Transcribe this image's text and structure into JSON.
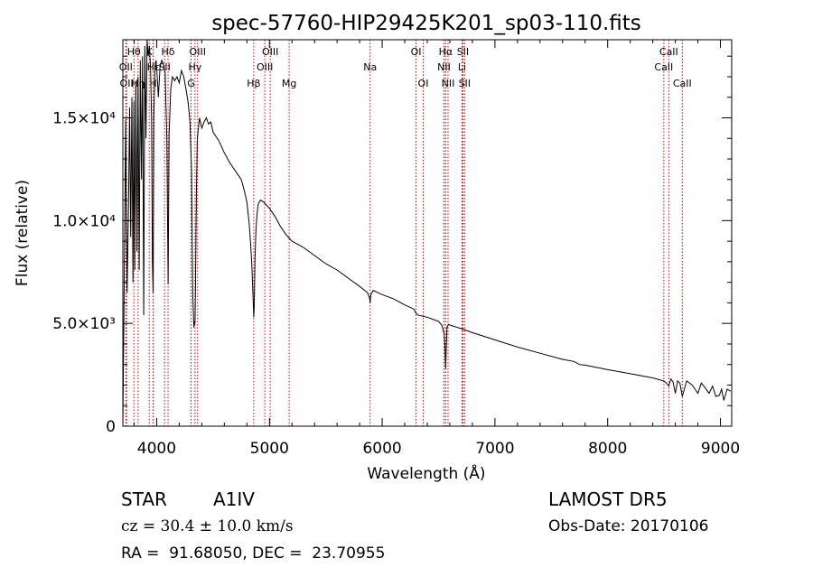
{
  "chart_data": {
    "type": "line",
    "title": "spec-57760-HIP29425K201_sp03-110.fits",
    "xlabel": "Wavelength (Å)",
    "ylabel": "Flux (relative)",
    "xlim": [
      3700,
      9100
    ],
    "ylim": [
      0,
      18800
    ],
    "x_ticks": [
      4000,
      5000,
      6000,
      7000,
      8000,
      9000
    ],
    "x_tick_labels": [
      "4000",
      "5000",
      "6000",
      "7000",
      "8000",
      "9000"
    ],
    "y_ticks": [
      0,
      5000,
      10000,
      15000
    ],
    "y_tick_labels": [
      "0",
      "5.0×10³",
      "1.0×10⁴",
      "1.5×10⁴"
    ],
    "grid": false,
    "line_color": "#000000",
    "marker_color": "#cc0000",
    "series": [
      {
        "x": [
          3700,
          3712,
          3725,
          3738,
          3750,
          3760,
          3770,
          3780,
          3790,
          3798,
          3806,
          3815,
          3825,
          3835,
          3845,
          3855,
          3865,
          3875,
          3885,
          3895,
          3905,
          3915,
          3925,
          3935,
          3945,
          3955,
          3962,
          3968,
          3975,
          3985,
          3995,
          4005,
          4015,
          4030,
          4045,
          4060,
          4075,
          4090,
          4101,
          4110,
          4125,
          4140,
          4160,
          4180,
          4200,
          4220,
          4240,
          4260,
          4280,
          4295,
          4310,
          4320,
          4330,
          4335,
          4340,
          4345,
          4352,
          4360,
          4380,
          4400,
          4420,
          4440,
          4460,
          4480,
          4500,
          4550,
          4600,
          4650,
          4700,
          4750,
          4780,
          4800,
          4820,
          4835,
          4845,
          4855,
          4861,
          4866,
          4872,
          4880,
          4890,
          4900,
          4920,
          4950,
          5000,
          5050,
          5100,
          5150,
          5200,
          5300,
          5400,
          5500,
          5600,
          5700,
          5800,
          5870,
          5890,
          5893,
          5900,
          5920,
          6000,
          6100,
          6200,
          6280,
          6300,
          6320,
          6400,
          6450,
          6500,
          6530,
          6550,
          6558,
          6563,
          6568,
          6575,
          6590,
          6610,
          6700,
          6800,
          7000,
          7200,
          7400,
          7600,
          7700,
          7750,
          7800,
          8000,
          8200,
          8400,
          8498,
          8520,
          8542,
          8560,
          8580,
          8600,
          8620,
          8640,
          8662,
          8700,
          8750,
          8800,
          8830,
          8860,
          8900,
          8930,
          8960,
          8990,
          9010,
          9030,
          9060,
          9090
        ],
        "y": [
          0,
          6900,
          14900,
          6500,
          10500,
          15500,
          9200,
          16000,
          7000,
          15800,
          7600,
          16800,
          8500,
          17000,
          7600,
          17800,
          12000,
          18000,
          5400,
          18500,
          14000,
          18800,
          18000,
          18500,
          17500,
          15000,
          8000,
          6500,
          15000,
          17600,
          17800,
          17000,
          16000,
          17500,
          17800,
          17600,
          17200,
          14000,
          6900,
          14200,
          16400,
          17000,
          16800,
          17000,
          16700,
          17300,
          17000,
          16400,
          15700,
          14800,
          12300,
          6400,
          4800,
          5100,
          5000,
          7200,
          11200,
          14000,
          15000,
          14500,
          14800,
          15000,
          14700,
          14800,
          14300,
          13900,
          13300,
          12800,
          12400,
          12000,
          11400,
          10900,
          9900,
          8700,
          7700,
          6200,
          5300,
          5900,
          8200,
          9500,
          10300,
          10800,
          11000,
          10900,
          10600,
          10200,
          9700,
          9300,
          9000,
          8700,
          8300,
          7900,
          7600,
          7200,
          6800,
          6500,
          6200,
          6000,
          6400,
          6600,
          6400,
          6200,
          5900,
          5700,
          5500,
          5400,
          5300,
          5200,
          5100,
          4900,
          4500,
          3700,
          2800,
          3800,
          4800,
          4950,
          4900,
          4750,
          4550,
          4200,
          3850,
          3550,
          3250,
          3150,
          3000,
          2970,
          2750,
          2550,
          2350,
          2200,
          2100,
          1950,
          2300,
          2150,
          1600,
          2200,
          2100,
          1450,
          2200,
          2000,
          1600,
          2100,
          1900,
          1600,
          1950,
          1450,
          1500,
          1800,
          1250,
          1800,
          1700
        ]
      }
    ],
    "line_markers": [
      {
        "name": "Hθ",
        "x": 3798,
        "row": 0
      },
      {
        "name": "OII",
        "x": 3727,
        "row": 1
      },
      {
        "name": "OII",
        "x": 3733,
        "row": 2
      },
      {
        "name": "Hη",
        "x": 3835,
        "row": 2
      },
      {
        "name": "K",
        "x": 3934,
        "row": 0
      },
      {
        "name": "Hε",
        "x": 3970,
        "row": 1
      },
      {
        "name": "H",
        "x": 3969,
        "row": 2
      },
      {
        "name": "Hδ",
        "x": 4101,
        "row": 0
      },
      {
        "name": "SII",
        "x": 4070,
        "row": 1
      },
      {
        "name": "OIII",
        "x": 4363,
        "row": 0
      },
      {
        "name": "Hγ",
        "x": 4340,
        "row": 1
      },
      {
        "name": "G",
        "x": 4305,
        "row": 2
      },
      {
        "name": "OIII",
        "x": 5007,
        "row": 0
      },
      {
        "name": "OIII",
        "x": 4959,
        "row": 1
      },
      {
        "name": "Hβ",
        "x": 4861,
        "row": 2
      },
      {
        "name": "Mg",
        "x": 5175,
        "row": 2
      },
      {
        "name": "Na",
        "x": 5893,
        "row": 1
      },
      {
        "name": "OI",
        "x": 6300,
        "row": 0
      },
      {
        "name": "OI",
        "x": 6364,
        "row": 2
      },
      {
        "name": "Hα",
        "x": 6563,
        "row": 0
      },
      {
        "name": "SII",
        "x": 6716,
        "row": 0
      },
      {
        "name": "NII",
        "x": 6548,
        "row": 1
      },
      {
        "name": "Li",
        "x": 6708,
        "row": 1
      },
      {
        "name": "NII",
        "x": 6584,
        "row": 2
      },
      {
        "name": "SII",
        "x": 6731,
        "row": 2
      },
      {
        "name": "CaII",
        "x": 8542,
        "row": 0
      },
      {
        "name": "CaII",
        "x": 8498,
        "row": 1
      },
      {
        "name": "CaII",
        "x": 8662,
        "row": 2
      }
    ]
  },
  "info": {
    "object_class": "STAR",
    "subclass": "A1IV",
    "survey": "LAMOST DR5",
    "redshift_line": "cz = 30.4 ± 10.0 km/s",
    "obs_date_line": "Obs-Date: 20170106",
    "coords_line": "RA =  91.68050, DEC =  23.70955"
  }
}
